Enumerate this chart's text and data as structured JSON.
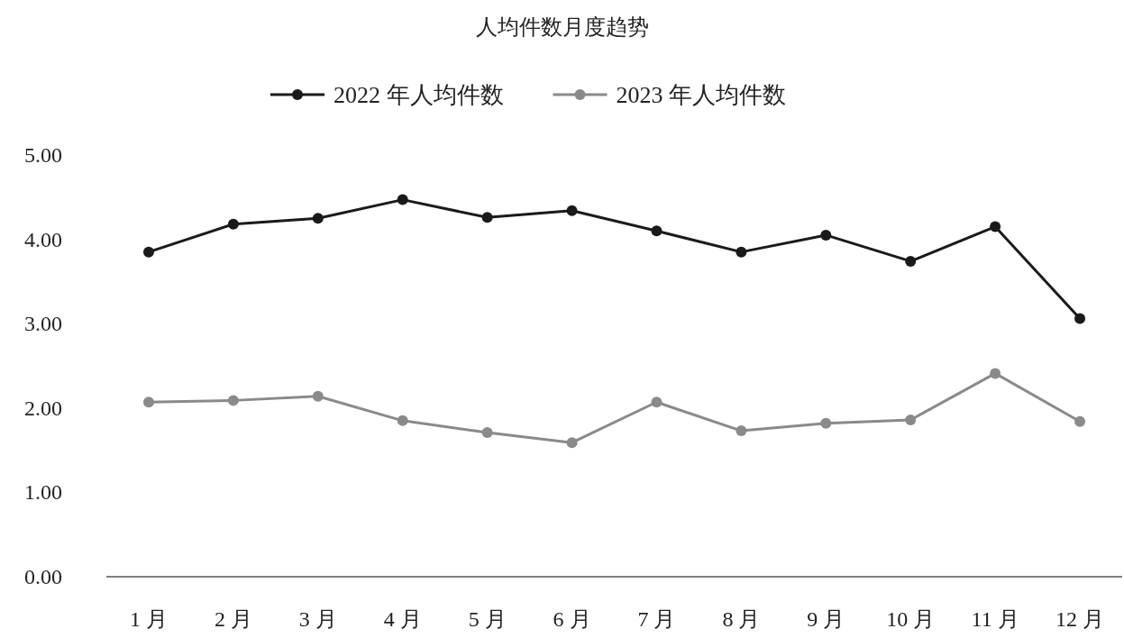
{
  "chart_data": {
    "type": "line",
    "title": "人均件数月度趋势",
    "categories": [
      "1 月",
      "2 月",
      "3 月",
      "4 月",
      "5 月",
      "6 月",
      "7 月",
      "8 月",
      "9 月",
      "10 月",
      "11 月",
      "12 月"
    ],
    "series": [
      {
        "name": "2022 年人均件数",
        "color": "#1a1a1a",
        "values": [
          3.85,
          4.18,
          4.25,
          4.47,
          4.26,
          4.34,
          4.1,
          3.85,
          4.05,
          3.74,
          4.15,
          3.06
        ]
      },
      {
        "name": "2023 年人均件数",
        "color": "#8a8a8a",
        "values": [
          2.07,
          2.09,
          2.14,
          1.85,
          1.71,
          1.59,
          2.07,
          1.73,
          1.82,
          1.86,
          2.41,
          1.84
        ]
      }
    ],
    "ylim": [
      0,
      5
    ],
    "yticks": [
      {
        "value": 0,
        "label": "0.00"
      },
      {
        "value": 1,
        "label": "1.00"
      },
      {
        "value": 2,
        "label": "2.00"
      },
      {
        "value": 3,
        "label": "3.00"
      },
      {
        "value": 4,
        "label": "4.00"
      },
      {
        "value": 5,
        "label": "5.00"
      }
    ],
    "legend": "top",
    "marker": "circle"
  }
}
